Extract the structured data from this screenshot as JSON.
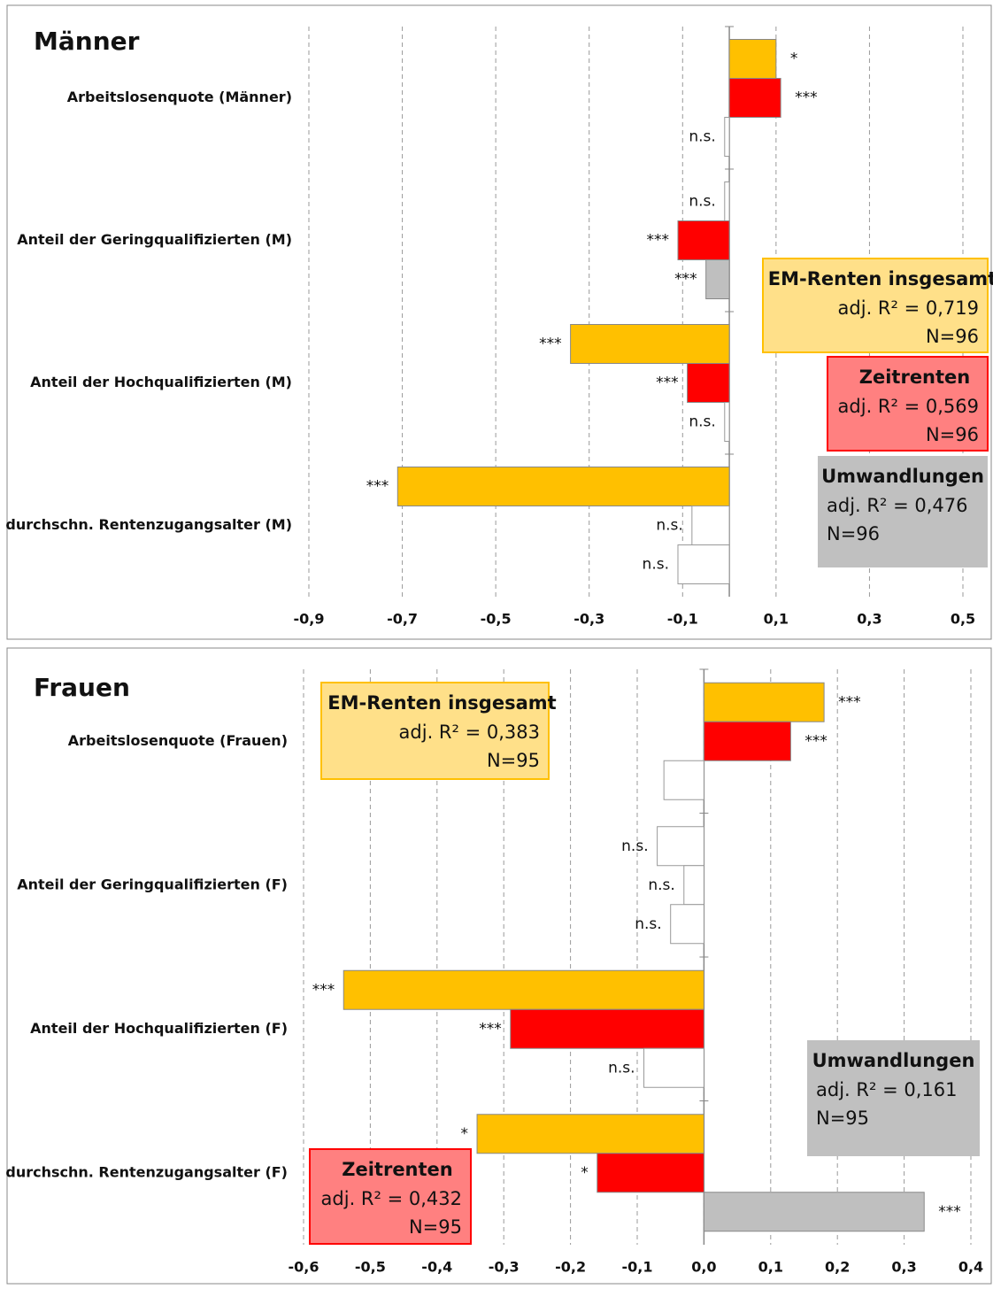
{
  "chart_data": [
    {
      "type": "bar",
      "orientation": "horizontal",
      "title": "Männer",
      "categories": [
        "Arbeitslosenquote (Männer)",
        "Anteil der Geringqualifizierten (M)",
        "Anteil der Hochqualifizierten (M)",
        "durchschn. Rentenzugangsalter (M)"
      ],
      "xlim": [
        -0.9,
        0.5
      ],
      "xticks": [
        {
          "value": -0.9,
          "label": "-0,9"
        },
        {
          "value": -0.7,
          "label": "-0,7"
        },
        {
          "value": -0.5,
          "label": "-0,5"
        },
        {
          "value": -0.3,
          "label": "-0,3"
        },
        {
          "value": -0.1,
          "label": "-0,1"
        },
        {
          "value": 0.1,
          "label": "0,1"
        },
        {
          "value": 0.3,
          "label": "0,3"
        },
        {
          "value": 0.5,
          "label": "0,5"
        }
      ],
      "grid": true,
      "series": [
        {
          "name": "EM-Renten insgesamt",
          "color": "#ffc000",
          "colors": [
            "#ffc000",
            "#ffffff",
            "#ffc000",
            "#ffc000"
          ],
          "values": [
            0.1,
            -0.01,
            -0.34,
            -0.71
          ],
          "significance": [
            "*",
            "n.s.",
            "***",
            "***"
          ],
          "stats": [
            "adj. R² = 0,719",
            "N=96"
          ]
        },
        {
          "name": "Zeitrenten",
          "color": "#ff0000",
          "colors": [
            "#ff0000",
            "#ff0000",
            "#ff0000",
            "#ffffff"
          ],
          "values": [
            0.11,
            -0.11,
            -0.09,
            -0.08
          ],
          "significance": [
            "***",
            "***",
            "***",
            "n.s."
          ],
          "stats": [
            "adj. R² = 0,569",
            "N=96"
          ]
        },
        {
          "name": "Umwandlungen",
          "color": "#bfbfbf",
          "colors": [
            "#ffffff",
            "#bfbfbf",
            "#ffffff",
            "#ffffff"
          ],
          "values": [
            -0.01,
            -0.05,
            -0.01,
            -0.11
          ],
          "significance": [
            "n.s.",
            "***",
            "n.s.",
            "n.s."
          ],
          "stats": [
            "adj. R² = 0,476",
            "N=96"
          ]
        }
      ]
    },
    {
      "type": "bar",
      "orientation": "horizontal",
      "title": "Frauen",
      "categories": [
        "Arbeitslosenquote (Frauen)",
        "Anteil der Geringqualifizierten (F)",
        "Anteil der Hochqualifizierten (F)",
        "durchschn. Rentenzugangsalter (F)"
      ],
      "xlim": [
        -0.6,
        0.4
      ],
      "xticks": [
        {
          "value": -0.6,
          "label": "-0,6"
        },
        {
          "value": -0.5,
          "label": "-0,5"
        },
        {
          "value": -0.4,
          "label": "-0,4"
        },
        {
          "value": -0.3,
          "label": "-0,3"
        },
        {
          "value": -0.2,
          "label": "-0,2"
        },
        {
          "value": -0.1,
          "label": "-0,1"
        },
        {
          "value": 0,
          "label": "0,0"
        },
        {
          "value": 0.1,
          "label": "0,1"
        },
        {
          "value": 0.2,
          "label": "0,2"
        },
        {
          "value": 0.3,
          "label": "0,3"
        },
        {
          "value": 0.4,
          "label": "0,4"
        }
      ],
      "grid": true,
      "series": [
        {
          "name": "EM-Renten insgesamt",
          "color": "#ffc000",
          "colors": [
            "#ffc000",
            "#ffffff",
            "#ffc000",
            "#ffc000"
          ],
          "values": [
            0.18,
            -0.07,
            -0.54,
            -0.34
          ],
          "significance": [
            "***",
            "n.s.",
            "***",
            "*"
          ],
          "stats": [
            "adj. R² = 0,383",
            "N=95"
          ]
        },
        {
          "name": "Zeitrenten",
          "color": "#ff0000",
          "colors": [
            "#ff0000",
            "#ffffff",
            "#ff0000",
            "#ff0000"
          ],
          "values": [
            0.13,
            -0.03,
            -0.29,
            -0.16
          ],
          "significance": [
            "***",
            "n.s.",
            "***",
            "*"
          ],
          "stats": [
            "adj. R² = 0,432",
            "N=95"
          ]
        },
        {
          "name": "Umwandlungen",
          "color": "#bfbfbf",
          "colors": [
            "#ffffff",
            "#ffffff",
            "#ffffff",
            "#bfbfbf"
          ],
          "values": [
            -0.06,
            -0.05,
            -0.09,
            0.33
          ],
          "significance": [
            null,
            "n.s.",
            "n.s.",
            "***"
          ],
          "stats": [
            "adj. R² = 0,161",
            "N=95"
          ]
        }
      ]
    }
  ]
}
